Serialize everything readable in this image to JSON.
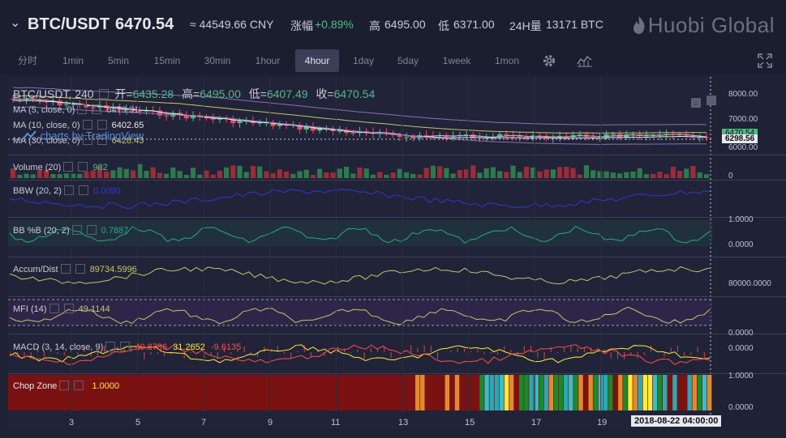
{
  "header": {
    "menu_glyph": "⌄",
    "pair": "BTC/USDT",
    "price": "6470.54",
    "cny": "≈ 44549.66 CNY",
    "change_label": "涨幅",
    "change_value": "+0.89%",
    "high_label": "高",
    "high_value": "6495.00",
    "low_label": "低",
    "low_value": "6371.00",
    "vol_label": "24H量",
    "vol_value": "13171 BTC",
    "brand": "Huobi Global"
  },
  "tabs": [
    "分时",
    "1min",
    "5min",
    "15min",
    "30min",
    "1hour",
    "4hour",
    "1day",
    "5day",
    "1week",
    "1mon"
  ],
  "active_tab": "4hour",
  "icons": [
    "gear-icon",
    "indicator-icon",
    "fullscreen-icon"
  ],
  "main_pane": {
    "symbol": "BTC/USDT, 240",
    "open_label": "开=",
    "open": "6435.28",
    "high_label": "高=",
    "high": "6495.00",
    "low_label": "低=",
    "low": "6407.49",
    "close_label": "收=",
    "close": "6470.54",
    "ma5": "MA (5, close, 0)",
    "ma5_val": "6479.31",
    "ma10": "MA (10, close, 0)",
    "ma10_val": "6402.65",
    "ma30": "MA (30, close, 0)",
    "ma30_val": "6428.43",
    "watermark": "charts by TradingView",
    "ticks": [
      "8000.00",
      "7000.00",
      "6000.00"
    ],
    "price_tag_green": "6470.54",
    "price_tag_white": "6298.56"
  },
  "volume": {
    "label": "Volume (20)",
    "value": "982",
    "tick": "0"
  },
  "bbw": {
    "label": "BBW (20, 2)",
    "value": "0.0090"
  },
  "bbpb": {
    "label": "BB %B (20, 2)",
    "value": "0.7887",
    "ticks": [
      "1.0000",
      "0.0000"
    ]
  },
  "ad": {
    "label": "Accum/Dist",
    "value": "89734.5996",
    "tick": "80000.0000"
  },
  "mfi": {
    "label": "MFI (14)",
    "value": "49.1144",
    "tick": "0.0000"
  },
  "macd": {
    "label": "MACD (3, 14, close, 9)",
    "v1": "40.8786",
    "v2": "31.2652",
    "v3": "-9.6135",
    "ticks": [
      "0.0000",
      "1.0000"
    ]
  },
  "chop": {
    "label": "Chop Zone",
    "value": "1.0000",
    "tick": "0.0000"
  },
  "x_ticks": [
    "3",
    "5",
    "7",
    "9",
    "11",
    "13",
    "15",
    "17",
    "19"
  ],
  "crosshair_date": "2018-08-22 04:00:00",
  "colors": {
    "up": "#53b987",
    "down": "#eb4d5c",
    "accent": "#3a3f58",
    "bg": "#1f2235"
  }
}
